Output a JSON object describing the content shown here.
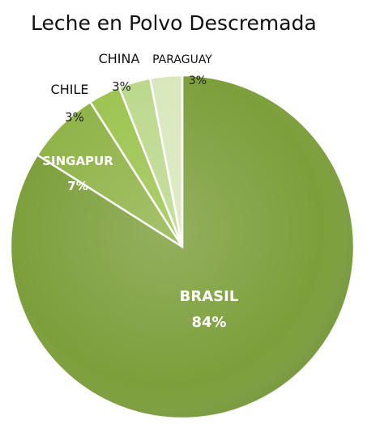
{
  "chart_data": {
    "type": "pie",
    "title": "Leche en Polvo Descremada",
    "slices": [
      {
        "label": "BRASIL",
        "value": 84,
        "value_label": "84%",
        "color": "#7c9f3b"
      },
      {
        "label": "SINGAPUR",
        "value": 7,
        "value_label": "7%",
        "color": "#8fb347"
      },
      {
        "label": "CHILE",
        "value": 3,
        "value_label": "3%",
        "color": "#9cc450"
      },
      {
        "label": "CHINA",
        "value": 3,
        "value_label": "3%",
        "color": "#bcd88c"
      },
      {
        "label": "PARAGUAY",
        "value": 3,
        "value_label": "3%",
        "color": "#d8e8bc"
      }
    ],
    "legend": "none",
    "start_angle": "12 o'clock",
    "direction": "clockwise"
  }
}
